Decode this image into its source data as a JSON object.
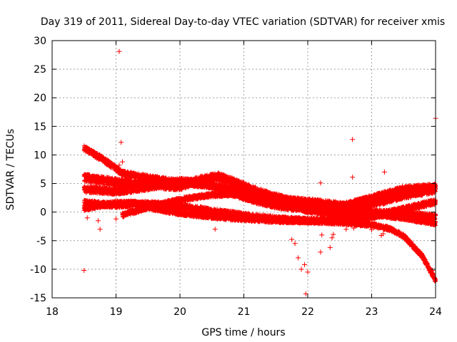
{
  "chart_data": {
    "type": "scatter",
    "title": "Day 319 of 2011, Sidereal Day-to-day VTEC variation (SDTVAR) for receiver xmis",
    "xlabel": "GPS time / hours",
    "ylabel": "SDTVAR / TECUs",
    "xlim": [
      18,
      24
    ],
    "ylim": [
      -15,
      30
    ],
    "xticks": [
      "18",
      "19",
      "20",
      "21",
      "22",
      "23",
      "24"
    ],
    "yticks": [
      "-15",
      "-10",
      "-5",
      "0",
      "5",
      "10",
      "15",
      "20",
      "25",
      "30"
    ],
    "grid": true,
    "marker": "+",
    "color": "#ff0000",
    "bands": [
      {
        "points": [
          [
            18.5,
            11.2
          ],
          [
            18.8,
            9.2
          ],
          [
            19.1,
            6.8
          ],
          [
            19.5,
            6.0
          ],
          [
            20.0,
            5.2
          ],
          [
            20.5,
            4.6
          ],
          [
            21.0,
            3.8
          ],
          [
            21.5,
            2.6
          ],
          [
            22.0,
            1.4
          ],
          [
            22.5,
            0.5
          ],
          [
            23.0,
            0.0
          ],
          [
            23.5,
            -0.3
          ],
          [
            24.0,
            -0.8
          ]
        ],
        "width": 1.0
      },
      {
        "points": [
          [
            18.5,
            6.0
          ],
          [
            19.0,
            5.2
          ],
          [
            19.5,
            4.8
          ],
          [
            20.0,
            4.5
          ],
          [
            20.3,
            5.6
          ],
          [
            20.6,
            6.2
          ],
          [
            20.9,
            5.0
          ],
          [
            21.3,
            3.2
          ],
          [
            21.7,
            2.0
          ],
          [
            22.2,
            1.5
          ],
          [
            22.6,
            1.0
          ],
          [
            23.0,
            1.5
          ],
          [
            23.5,
            3.0
          ],
          [
            24.0,
            4.0
          ]
        ],
        "width": 1.4
      },
      {
        "points": [
          [
            18.5,
            4.0
          ],
          [
            19.0,
            3.6
          ],
          [
            19.5,
            4.4
          ],
          [
            20.0,
            5.4
          ],
          [
            20.4,
            5.0
          ],
          [
            20.8,
            3.4
          ],
          [
            21.2,
            2.0
          ],
          [
            21.6,
            1.0
          ],
          [
            22.0,
            0.6
          ],
          [
            22.5,
            0.9
          ],
          [
            23.0,
            2.4
          ],
          [
            23.5,
            4.0
          ],
          [
            24.0,
            4.4
          ]
        ],
        "width": 1.2
      },
      {
        "points": [
          [
            18.5,
            1.6
          ],
          [
            19.0,
            1.2
          ],
          [
            19.5,
            1.5
          ],
          [
            20.0,
            1.0
          ],
          [
            20.5,
            0.2
          ],
          [
            21.0,
            -0.6
          ],
          [
            21.5,
            -1.2
          ],
          [
            22.0,
            -1.5
          ],
          [
            22.5,
            -1.4
          ],
          [
            23.0,
            -0.8
          ],
          [
            23.5,
            0.5
          ],
          [
            24.0,
            1.8
          ]
        ],
        "width": 1.0
      },
      {
        "points": [
          [
            18.5,
            0.6
          ],
          [
            19.0,
            1.6
          ],
          [
            19.3,
            1.6
          ],
          [
            19.6,
            0.6
          ],
          [
            20.0,
            -0.2
          ],
          [
            20.5,
            -0.8
          ],
          [
            21.0,
            -1.2
          ],
          [
            21.5,
            -1.5
          ],
          [
            22.0,
            -1.6
          ],
          [
            22.5,
            -1.8
          ],
          [
            23.0,
            -2.2
          ],
          [
            23.3,
            -3.0
          ],
          [
            23.5,
            -4.2
          ],
          [
            23.8,
            -7.8
          ],
          [
            24.0,
            -12.0
          ]
        ],
        "width": 0.8
      },
      {
        "points": [
          [
            19.1,
            -0.5
          ],
          [
            19.5,
            0.8
          ],
          [
            20.0,
            2.2
          ],
          [
            20.5,
            3.0
          ],
          [
            21.0,
            3.2
          ],
          [
            21.5,
            2.0
          ],
          [
            22.0,
            0.2
          ],
          [
            22.5,
            -0.5
          ],
          [
            23.0,
            -0.4
          ],
          [
            23.5,
            -1.0
          ],
          [
            24.0,
            -2.0
          ]
        ],
        "width": 0.8
      }
    ],
    "outliers": [
      [
        19.05,
        28.1
      ],
      [
        19.08,
        12.2
      ],
      [
        19.05,
        8.2
      ],
      [
        19.1,
        8.8
      ],
      [
        18.5,
        -10.2
      ],
      [
        18.55,
        -1.0
      ],
      [
        18.75,
        -3.0
      ],
      [
        18.72,
        -1.5
      ],
      [
        19.0,
        -1.2
      ],
      [
        20.55,
        -3.0
      ],
      [
        20.97,
        4.9
      ],
      [
        21.8,
        -5.5
      ],
      [
        21.85,
        -8.0
      ],
      [
        21.9,
        -10.0
      ],
      [
        21.95,
        -9.2
      ],
      [
        22.0,
        -10.5
      ],
      [
        21.97,
        -14.3
      ],
      [
        22.2,
        5.1
      ],
      [
        22.2,
        -7.0
      ],
      [
        22.22,
        -4.0
      ],
      [
        22.35,
        -6.2
      ],
      [
        22.38,
        -4.5
      ],
      [
        22.4,
        -3.9
      ],
      [
        22.6,
        -3.0
      ],
      [
        22.7,
        12.7
      ],
      [
        22.7,
        6.1
      ],
      [
        22.72,
        -2.8
      ],
      [
        23.0,
        -3.1
      ],
      [
        23.05,
        -2.2
      ],
      [
        23.15,
        -4.1
      ],
      [
        23.2,
        7.0
      ],
      [
        23.18,
        -3.8
      ],
      [
        24.0,
        16.4
      ],
      [
        23.95,
        -10.2
      ],
      [
        22.65,
        -1.5
      ],
      [
        21.75,
        -4.8
      ]
    ]
  }
}
